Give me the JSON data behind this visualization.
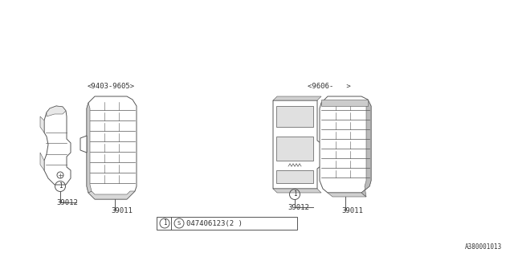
{
  "bg_color": "#ffffff",
  "line_color": "#555555",
  "text_color": "#333333",
  "date_range_left": "<9403-9605>",
  "date_range_right": "<9606-   >",
  "part_label_left_1": "39012",
  "part_label_left_2": "39011",
  "part_label_right_1": "39012",
  "part_label_right_2": "39011",
  "legend_part_num": "S047406123(2 )",
  "footer_id": "A380001013",
  "lw": 0.7
}
